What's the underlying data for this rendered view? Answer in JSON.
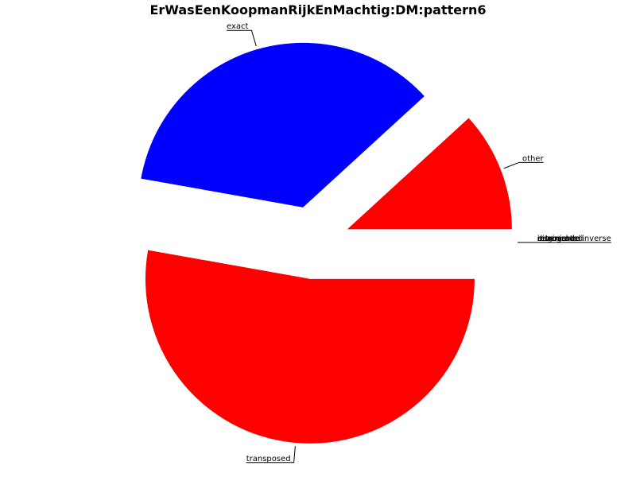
{
  "chart_data": {
    "type": "pie",
    "title": "ErWasEenKoopmanRijkEnMachtig:DM:pattern6",
    "slices": [
      {
        "label": "other",
        "value": 11.8,
        "color": "#ff0000"
      },
      {
        "label": "exact",
        "value": 35.4,
        "color": "#0000ff"
      },
      {
        "label": "transposed",
        "value": 52.8,
        "color": "#ff0000"
      },
      {
        "label": "inverse",
        "value": 0.0,
        "color": "#ff0000"
      },
      {
        "label": "retrograde",
        "value": 0.0,
        "color": "#ff0000"
      },
      {
        "label": "retrograde inverse",
        "value": 0.0,
        "color": "#ff0000"
      },
      {
        "label": "augmented",
        "value": 0.0,
        "color": "#ff0000"
      },
      {
        "label": "diminished",
        "value": 0.0,
        "color": "#ff0000"
      }
    ],
    "legend": "none"
  }
}
